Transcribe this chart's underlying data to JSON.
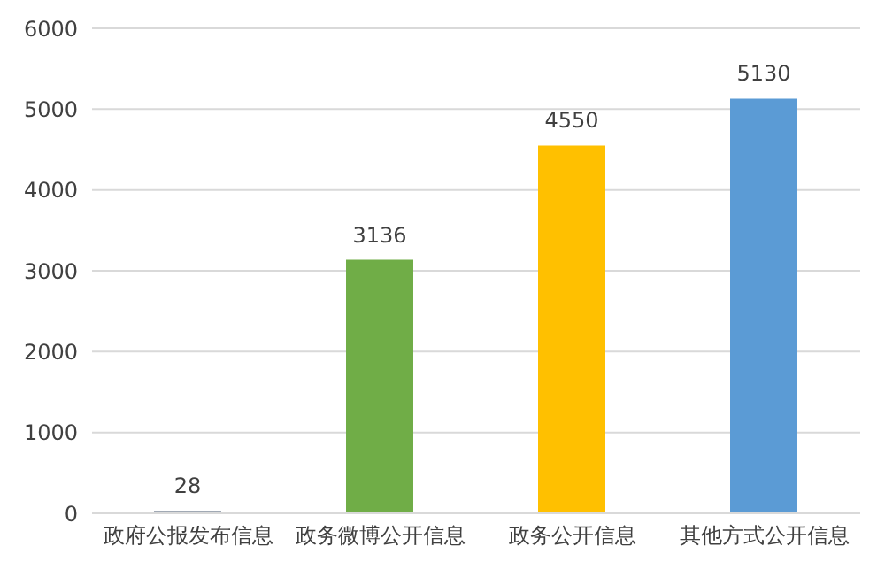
{
  "chart_data": {
    "type": "bar",
    "categories": [
      "政府公报发布信息",
      "政务微博公开信息",
      "政务公开信息",
      "其他方式公开信息"
    ],
    "values": [
      28,
      3136,
      4550,
      5130
    ],
    "colors": [
      "#44546a",
      "#70ad47",
      "#ffc000",
      "#5b9bd5"
    ],
    "ylim": [
      0,
      6000
    ],
    "yticks": [
      0,
      1000,
      2000,
      3000,
      4000,
      5000,
      6000
    ],
    "grid": "y",
    "data_labels": true
  }
}
